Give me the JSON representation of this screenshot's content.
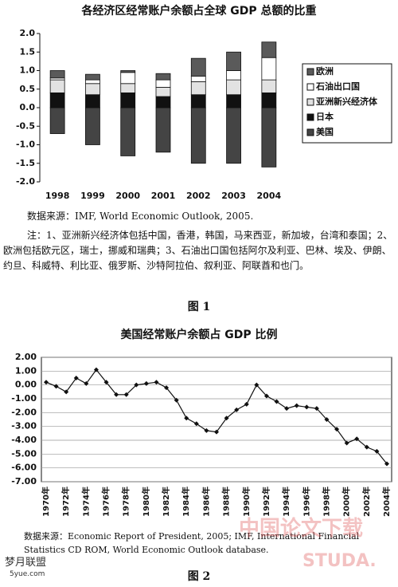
{
  "chart_data": [
    {
      "type": "stacked_bar",
      "title": "各经济区经常账户余额占全球 GDP 总额的比重",
      "categories": [
        "1998",
        "1999",
        "2000",
        "2001",
        "2002",
        "2003",
        "2004"
      ],
      "series": [
        {
          "name": "欧洲",
          "color": "#5a5a5a",
          "values": [
            0.2,
            0.15,
            0.05,
            0.17,
            0.48,
            0.5,
            0.42
          ]
        },
        {
          "name": "石油出口国",
          "color": "#ffffff",
          "values": [
            0.05,
            0.1,
            0.3,
            0.2,
            0.15,
            0.25,
            0.6
          ]
        },
        {
          "name": "亚洲新兴经济体",
          "color": "#e2e2e2",
          "values": [
            0.35,
            0.3,
            0.25,
            0.25,
            0.35,
            0.4,
            0.35
          ]
        },
        {
          "name": "日本",
          "color": "#111111",
          "values": [
            0.4,
            0.35,
            0.4,
            0.3,
            0.35,
            0.35,
            0.4
          ]
        },
        {
          "name": "美国",
          "color": "#444444",
          "values": [
            -0.7,
            -1.0,
            -1.3,
            -1.2,
            -1.5,
            -1.5,
            -1.6
          ]
        }
      ],
      "ylim": [
        -2,
        2
      ],
      "yticks": [
        {
          "value": 2,
          "label": "2.0"
        },
        {
          "value": 1.5,
          "label": "1.5"
        },
        {
          "value": 1,
          "label": "1.0"
        },
        {
          "value": 0.5,
          "label": "0.5"
        },
        {
          "value": 0,
          "label": "0.0"
        },
        {
          "value": -0.5,
          "label": "-0.5"
        },
        {
          "value": -1,
          "label": "-1.0"
        },
        {
          "value": -1.5,
          "label": "-1.5"
        },
        {
          "value": -2,
          "label": "-2.0"
        }
      ],
      "legend": "right",
      "source": "数据来源：IMF, World Economic Outlook, 2005.",
      "note": "注：1、亚洲新兴经济体包括中国，香港，韩国，马来西亚，新加坡，台湾和泰国；2、欧洲包括欧元区，瑞士，挪威和瑞典；3、石油出口国包括阿尔及利亚、巴林、埃及、伊朗、约旦、科威特、利比亚、俄罗斯、沙特阿拉伯、叙利亚、阿联酋和也门。",
      "caption": "图 1"
    },
    {
      "type": "line",
      "title": "美国经常账户余额占 GDP 比例",
      "categories": [
        "1970年",
        null,
        "1972年",
        null,
        "1974年",
        null,
        "1976年",
        null,
        "1978年",
        null,
        "1980年",
        null,
        "1982年",
        null,
        "1984年",
        null,
        "1986年",
        null,
        "1988年",
        null,
        "1990年",
        null,
        "1992年",
        null,
        "1994年",
        null,
        "1996年",
        null,
        "1998年",
        null,
        "2000年",
        null,
        "2002年",
        null,
        "2004年"
      ],
      "values": [
        0.2,
        -0.1,
        -0.5,
        0.5,
        0.1,
        1.1,
        0.2,
        -0.7,
        -0.7,
        0.0,
        0.1,
        0.2,
        -0.2,
        -1.1,
        -2.4,
        -2.8,
        -3.3,
        -3.4,
        -2.4,
        -1.8,
        -1.4,
        0.0,
        -0.8,
        -1.2,
        -1.7,
        -1.5,
        -1.6,
        -1.7,
        -2.5,
        -3.2,
        -4.2,
        -3.9,
        -4.5,
        -4.8,
        -5.7
      ],
      "color": "#111111",
      "ylim": [
        -7,
        2
      ],
      "yticks": [
        {
          "value": 2,
          "label": "2.00"
        },
        {
          "value": 1,
          "label": "1.00"
        },
        {
          "value": 0,
          "label": "0.00"
        },
        {
          "value": -1,
          "label": "-1.00"
        },
        {
          "value": -2,
          "label": "-2.00"
        },
        {
          "value": -3,
          "label": "-3.00"
        },
        {
          "value": -4,
          "label": "-4.00"
        },
        {
          "value": -5,
          "label": "-5.00"
        },
        {
          "value": -6,
          "label": "-6.00"
        },
        {
          "value": -7,
          "label": "-7.00"
        }
      ],
      "grid": true,
      "source": "数据来源：Economic Report of President, 2005; IMF, International Financial Statistics CD ROM, World Economic Outlook database.",
      "caption": "图 2"
    }
  ],
  "watermarks": [
    "中国论文下载",
    "STUDA.",
    "梦月联盟",
    "5yue.com"
  ]
}
